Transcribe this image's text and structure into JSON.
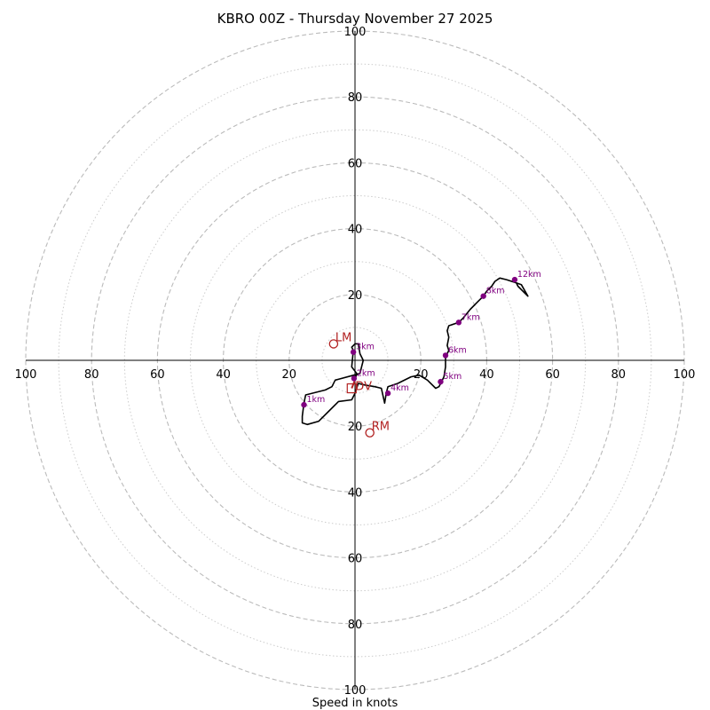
{
  "chart_data": {
    "type": "scatter",
    "title": "KBRO 00Z - Thursday November 27 2025",
    "xlabel": "Speed in knots",
    "ylabel": "",
    "xlim": [
      -100,
      100
    ],
    "ylim": [
      -100,
      100
    ],
    "rings_dashed": [
      20,
      40,
      60,
      80,
      100
    ],
    "rings_dotted": [
      10,
      30,
      50,
      70,
      90
    ],
    "ticks": {
      "top": [
        "20",
        "40",
        "60",
        "80",
        "100"
      ],
      "bottom": [
        "20",
        "40",
        "60",
        "80",
        "100"
      ],
      "left": [
        "20",
        "40",
        "60",
        "80",
        "100"
      ],
      "right": [
        "20",
        "40",
        "60",
        "80",
        "100"
      ]
    },
    "colors": {
      "trace": "#000000",
      "heights": "#800080",
      "storm": "#b22222",
      "rings": "#bbbbbb"
    },
    "trace": [
      [
        0,
        -6
      ],
      [
        0.5,
        -4
      ],
      [
        -1,
        -2
      ],
      [
        -0.5,
        3
      ],
      [
        -1,
        4
      ],
      [
        0,
        5
      ],
      [
        1,
        5
      ],
      [
        1.5,
        2
      ],
      [
        2.5,
        0
      ],
      [
        2,
        -2
      ],
      [
        1.5,
        -4
      ],
      [
        -6,
        -6
      ],
      [
        -7,
        -8
      ],
      [
        -9,
        -9
      ],
      [
        -15,
        -10.5
      ],
      [
        -15.5,
        -13
      ],
      [
        -16,
        -17
      ],
      [
        -16,
        -19
      ],
      [
        -14.5,
        -19.5
      ],
      [
        -11,
        -18.5
      ],
      [
        -8,
        -15.5
      ],
      [
        -5,
        -12.5
      ],
      [
        -1,
        -12
      ],
      [
        0,
        -10
      ],
      [
        1,
        -7
      ],
      [
        3,
        -7.5
      ],
      [
        6,
        -8
      ],
      [
        8,
        -8.5
      ],
      [
        9,
        -13
      ],
      [
        9.5,
        -10
      ],
      [
        10,
        -8
      ],
      [
        13,
        -7
      ],
      [
        17,
        -5
      ],
      [
        19.5,
        -4.5
      ],
      [
        22,
        -6
      ],
      [
        24.5,
        -8.5
      ],
      [
        25.5,
        -8
      ],
      [
        26,
        -7
      ],
      [
        27,
        -5
      ],
      [
        27.5,
        -2
      ],
      [
        27.5,
        1
      ],
      [
        28.5,
        3
      ],
      [
        28,
        4.5
      ],
      [
        28.5,
        7
      ],
      [
        28,
        9
      ],
      [
        28.5,
        10.5
      ],
      [
        31.5,
        11.5
      ],
      [
        33,
        13
      ],
      [
        35,
        15.5
      ],
      [
        37.5,
        18
      ],
      [
        39,
        19.5
      ],
      [
        40,
        21
      ],
      [
        41.5,
        22.5
      ],
      [
        42.5,
        24
      ],
      [
        44,
        25
      ],
      [
        46,
        24.5
      ],
      [
        49,
        23.5
      ],
      [
        50.5,
        23
      ],
      [
        52.5,
        19.5
      ],
      [
        49.5,
        22.5
      ],
      [
        49,
        23.5
      ],
      [
        48,
        24
      ]
    ],
    "height_markers": [
      {
        "label": "1km",
        "u": -15.5,
        "v": -13.5
      },
      {
        "label": "3km",
        "u": -0.5,
        "v": 2.5
      },
      {
        "label": "2km",
        "u": -0.3,
        "v": -5.5
      },
      {
        "label": "4km",
        "u": 10,
        "v": -10
      },
      {
        "label": "5km",
        "u": 26,
        "v": -6.5
      },
      {
        "label": "6km",
        "u": 27.5,
        "v": 1.5
      },
      {
        "label": "7km",
        "u": 31.5,
        "v": 11.5
      },
      {
        "label": "8km",
        "u": 39,
        "v": 19.5
      },
      {
        "label": "12km",
        "u": 48.5,
        "v": 24.5
      }
    ],
    "storm_motions": [
      {
        "label": "LM",
        "u": -6.5,
        "v": 5
      },
      {
        "label": "RM",
        "u": 4.5,
        "v": -22
      }
    ],
    "shear_markers": [
      {
        "label": "DV",
        "u": -1,
        "v": -8.5
      }
    ],
    "vector": {
      "from": [
        0,
        -6
      ],
      "to": [
        -1,
        -8.5
      ]
    }
  }
}
